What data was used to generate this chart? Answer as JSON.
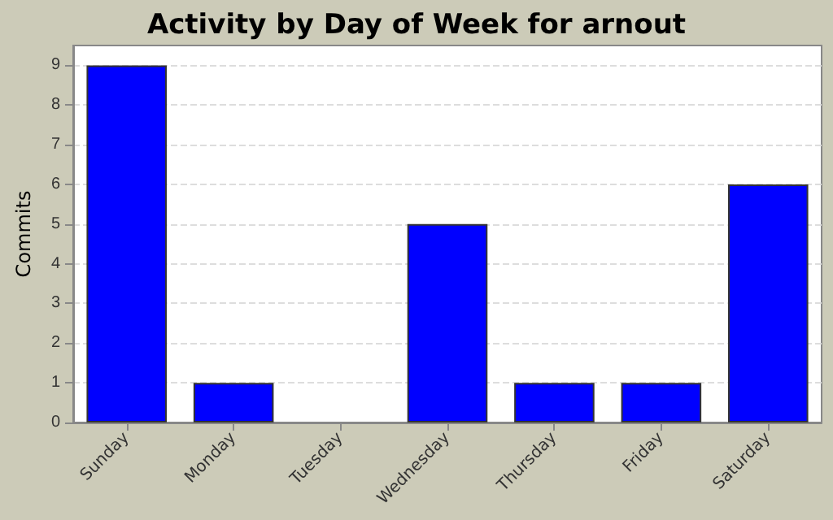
{
  "chart_data": {
    "type": "bar",
    "title": "Activity by Day of Week for arnout",
    "ylabel": "Commits",
    "categories": [
      "Sunday",
      "Monday",
      "Tuesday",
      "Wednesday",
      "Thursday",
      "Friday",
      "Saturday"
    ],
    "values": [
      9,
      1,
      0,
      5,
      1,
      1,
      6
    ],
    "color": "#0000ff",
    "ylim": [
      0,
      9.5
    ],
    "yticks": [
      0,
      1,
      2,
      3,
      4,
      5,
      6,
      7,
      8,
      9
    ],
    "grid": "y"
  }
}
